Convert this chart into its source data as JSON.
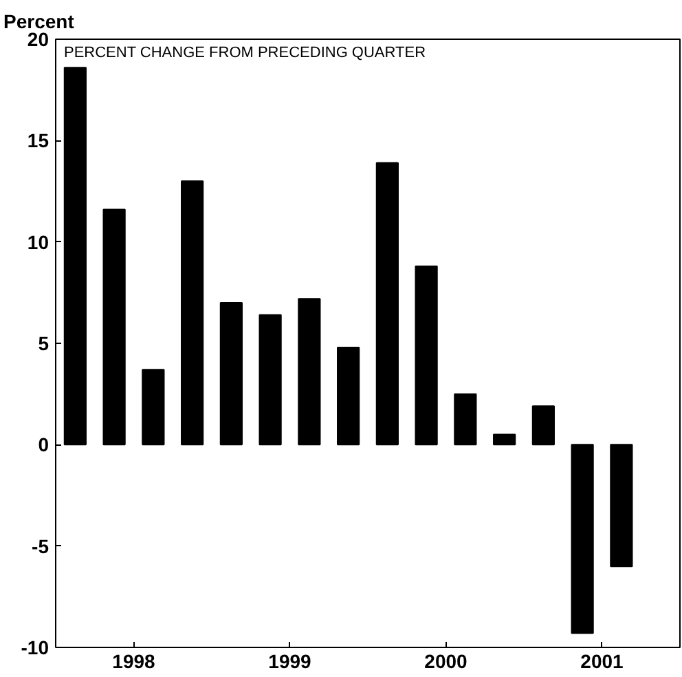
{
  "chart_data": {
    "type": "bar",
    "ylabel": "Percent",
    "subtitle": "PERCENT CHANGE FROM PRECEDING QUARTER",
    "x": [
      1998.125,
      1998.375,
      1998.625,
      1998.875,
      1999.125,
      1999.375,
      1999.625,
      1999.875,
      2000.125,
      2000.375,
      2000.625,
      2000.875,
      2001.125,
      2001.375,
      2001.625
    ],
    "values": [
      18.6,
      11.6,
      3.7,
      13.0,
      7.0,
      6.4,
      7.2,
      4.8,
      13.9,
      8.8,
      2.5,
      0.5,
      1.9,
      -9.3,
      -6.0
    ],
    "color": "#000000",
    "xlim": [
      1998,
      2002
    ],
    "xticks": [
      {
        "value": 1998.5,
        "label": "1998"
      },
      {
        "value": 1999.5,
        "label": "1999"
      },
      {
        "value": 2000.5,
        "label": "2000"
      },
      {
        "value": 2001.5,
        "label": "2001"
      }
    ],
    "ylim": [
      -10,
      20
    ],
    "yticks": [
      -10,
      -5,
      0,
      5,
      10,
      15,
      20
    ],
    "grid": false
  }
}
